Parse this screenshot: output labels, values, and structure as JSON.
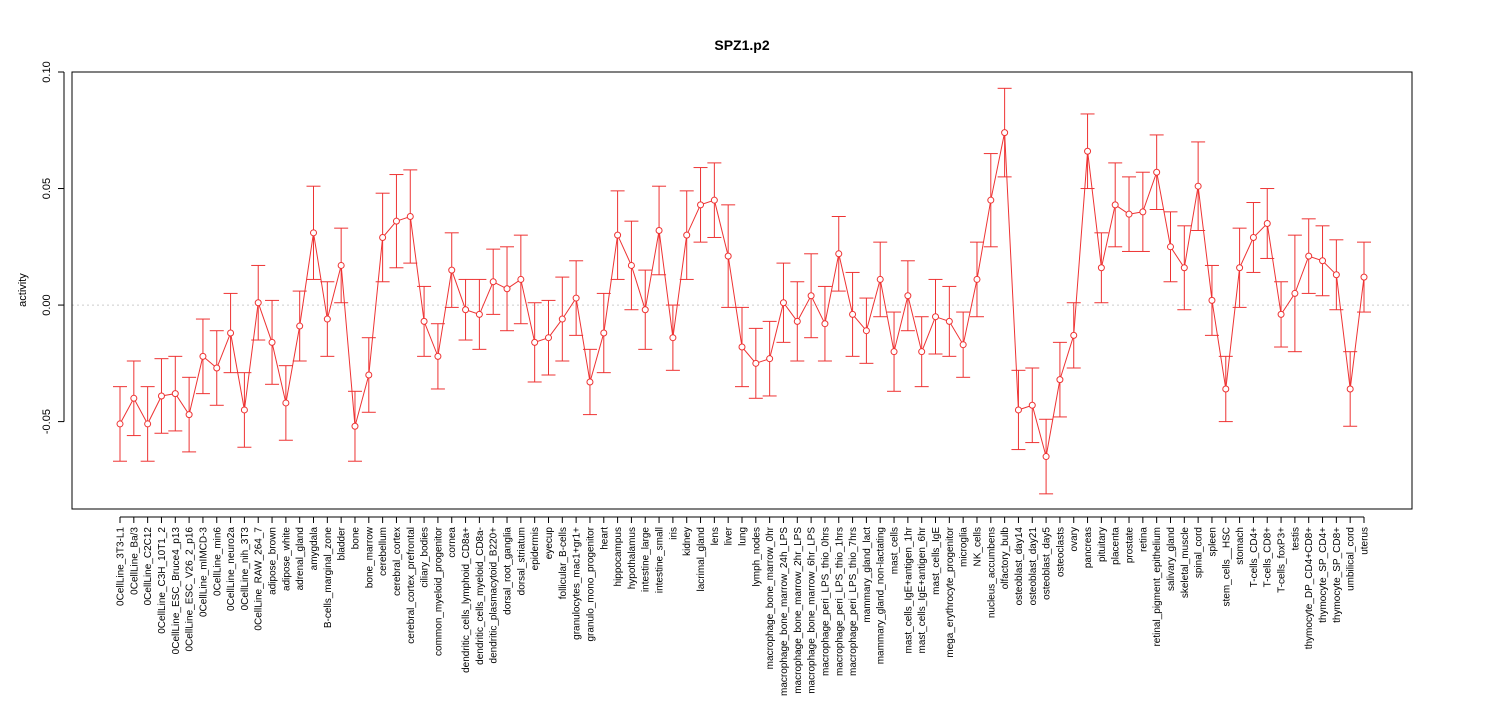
{
  "colors": {
    "series": "#ee3333",
    "reference_line": "#cccccc",
    "axis": "#000000"
  },
  "chart_data": {
    "type": "line",
    "title": "SPZ1.p2",
    "xlabel": "",
    "ylabel": "activity",
    "ylim": [
      -0.0875,
      0.1
    ],
    "yticks": [
      -0.05,
      0.0,
      0.05,
      0.1
    ],
    "ytick_labels": [
      "-0.05",
      "0.00",
      "0.05",
      "0.10"
    ],
    "reference_line": 0.0,
    "grid": false,
    "categories": [
      "0CellLine_3T3-L1",
      "0CellLine_Ba/3",
      "0CellLine_C2C12",
      "0CellLine_C3H_10T1_2",
      "0CellLine_ESC_Bruce4_p13",
      "0CellLine_ESC_V26_2_p16",
      "0CellLine_mIMCD-3",
      "0CellLine_min6",
      "0CellLine_neuro2a",
      "0CellLine_nih_3T3",
      "0CellLine_RAW_264_7",
      "adipose_brown",
      "adipose_white",
      "adrenal_gland",
      "amygdala",
      "B-cells_marginal_zone",
      "bladder",
      "bone",
      "bone_marrow",
      "cerebellum",
      "cerebral_cortex",
      "cerebral_cortex_prefrontal",
      "ciliary_bodies",
      "common_myeloid_progenitor",
      "cornea",
      "dendritic_cells_lymphoid_CD8a+",
      "dendritic_cells_myeloid_CD8a-",
      "dendritic_plasmacytoid_B220+",
      "dorsal_root_ganglia",
      "dorsal_striatum",
      "epidermis",
      "eyecup",
      "follicular_B-cells",
      "granulocytes_mac1+gr1+",
      "granulo_mono_progenitor",
      "heart",
      "hippocampus",
      "hypothalamus",
      "intestine_large",
      "intestine_small",
      "iris",
      "kidney",
      "lacrimal_gland",
      "lens",
      "liver",
      "lung",
      "lymph_nodes",
      "macrophage_bone_marrow_0hr",
      "macrophage_bone_marrow_24h_LPS",
      "macrophage_bone_marrow_2hr_LPS",
      "macrophage_bone_marrow_6hr_LPS",
      "macrophage_peri_LPS_thio_0hrs",
      "macrophage_peri_LPS_thio_1hrs",
      "macrophage_peri_LPS_thio_7hrs",
      "mammary_gland_lact",
      "mammary_gland_non-lactating",
      "mast_cells",
      "mast_cells_IgE+antigen_1hr",
      "mast_cells_IgE+antigen_6hr",
      "mast_cells_IgE",
      "mega_erythrocyte_progenitor",
      "microglia",
      "NK_cells",
      "nucleus_accumbens",
      "olfactory_bulb",
      "osteoblast_day14",
      "osteoblast_day21",
      "osteoblast_day5",
      "osteoclasts",
      "ovary",
      "pancreas",
      "pituitary",
      "placenta",
      "prostate",
      "retina",
      "retinal_pigment_epithelium",
      "salivary_gland",
      "skeletal_muscle",
      "spinal_cord",
      "spleen",
      "stem_cells__HSC",
      "stomach",
      "T-cells_CD4+",
      "T-cells_CD8+",
      "T-cells_foxP3+",
      "testis",
      "thymocyte_DP_CD4+CD8+",
      "thymocyte_SP_CD4+",
      "thymocyte_SP_CD8+",
      "umbilical_cord",
      "uterus"
    ],
    "series": [
      {
        "name": "SPZ1.p2",
        "values": [
          -0.051,
          -0.04,
          -0.051,
          -0.039,
          -0.038,
          -0.047,
          -0.022,
          -0.027,
          -0.012,
          -0.045,
          0.001,
          -0.016,
          -0.042,
          -0.009,
          0.031,
          -0.006,
          0.017,
          -0.052,
          -0.03,
          0.029,
          0.036,
          0.038,
          -0.007,
          -0.022,
          0.015,
          -0.002,
          -0.004,
          0.01,
          0.007,
          0.011,
          -0.016,
          -0.014,
          -0.006,
          0.003,
          -0.033,
          -0.012,
          0.03,
          0.017,
          -0.002,
          0.032,
          -0.014,
          0.03,
          0.043,
          0.045,
          0.021,
          -0.018,
          -0.025,
          -0.023,
          0.001,
          -0.007,
          0.004,
          -0.008,
          0.022,
          -0.004,
          -0.011,
          0.011,
          -0.02,
          0.004,
          -0.02,
          -0.005,
          -0.007,
          -0.017,
          0.011,
          0.045,
          0.074,
          -0.045,
          -0.043,
          -0.065,
          -0.032,
          -0.013,
          0.066,
          0.016,
          0.043,
          0.039,
          0.04,
          0.057,
          0.025,
          0.016,
          0.051,
          0.002,
          -0.036,
          0.016,
          0.029,
          0.035,
          -0.004,
          0.005,
          0.021,
          0.019,
          0.013,
          -0.036,
          0.012
        ],
        "errors": [
          0.016,
          0.016,
          0.016,
          0.016,
          0.016,
          0.016,
          0.016,
          0.016,
          0.017,
          0.016,
          0.016,
          0.018,
          0.016,
          0.015,
          0.02,
          0.016,
          0.016,
          0.015,
          0.016,
          0.019,
          0.02,
          0.02,
          0.015,
          0.014,
          0.016,
          0.013,
          0.015,
          0.014,
          0.018,
          0.019,
          0.017,
          0.016,
          0.018,
          0.016,
          0.014,
          0.017,
          0.019,
          0.019,
          0.017,
          0.019,
          0.014,
          0.019,
          0.016,
          0.016,
          0.022,
          0.017,
          0.015,
          0.016,
          0.017,
          0.017,
          0.018,
          0.016,
          0.016,
          0.018,
          0.014,
          0.016,
          0.017,
          0.015,
          0.015,
          0.016,
          0.015,
          0.014,
          0.016,
          0.02,
          0.019,
          0.017,
          0.016,
          0.016,
          0.016,
          0.014,
          0.016,
          0.015,
          0.018,
          0.016,
          0.017,
          0.016,
          0.015,
          0.018,
          0.019,
          0.015,
          0.014,
          0.017,
          0.015,
          0.015,
          0.014,
          0.025,
          0.016,
          0.015,
          0.015,
          0.016,
          0.015
        ]
      }
    ]
  }
}
